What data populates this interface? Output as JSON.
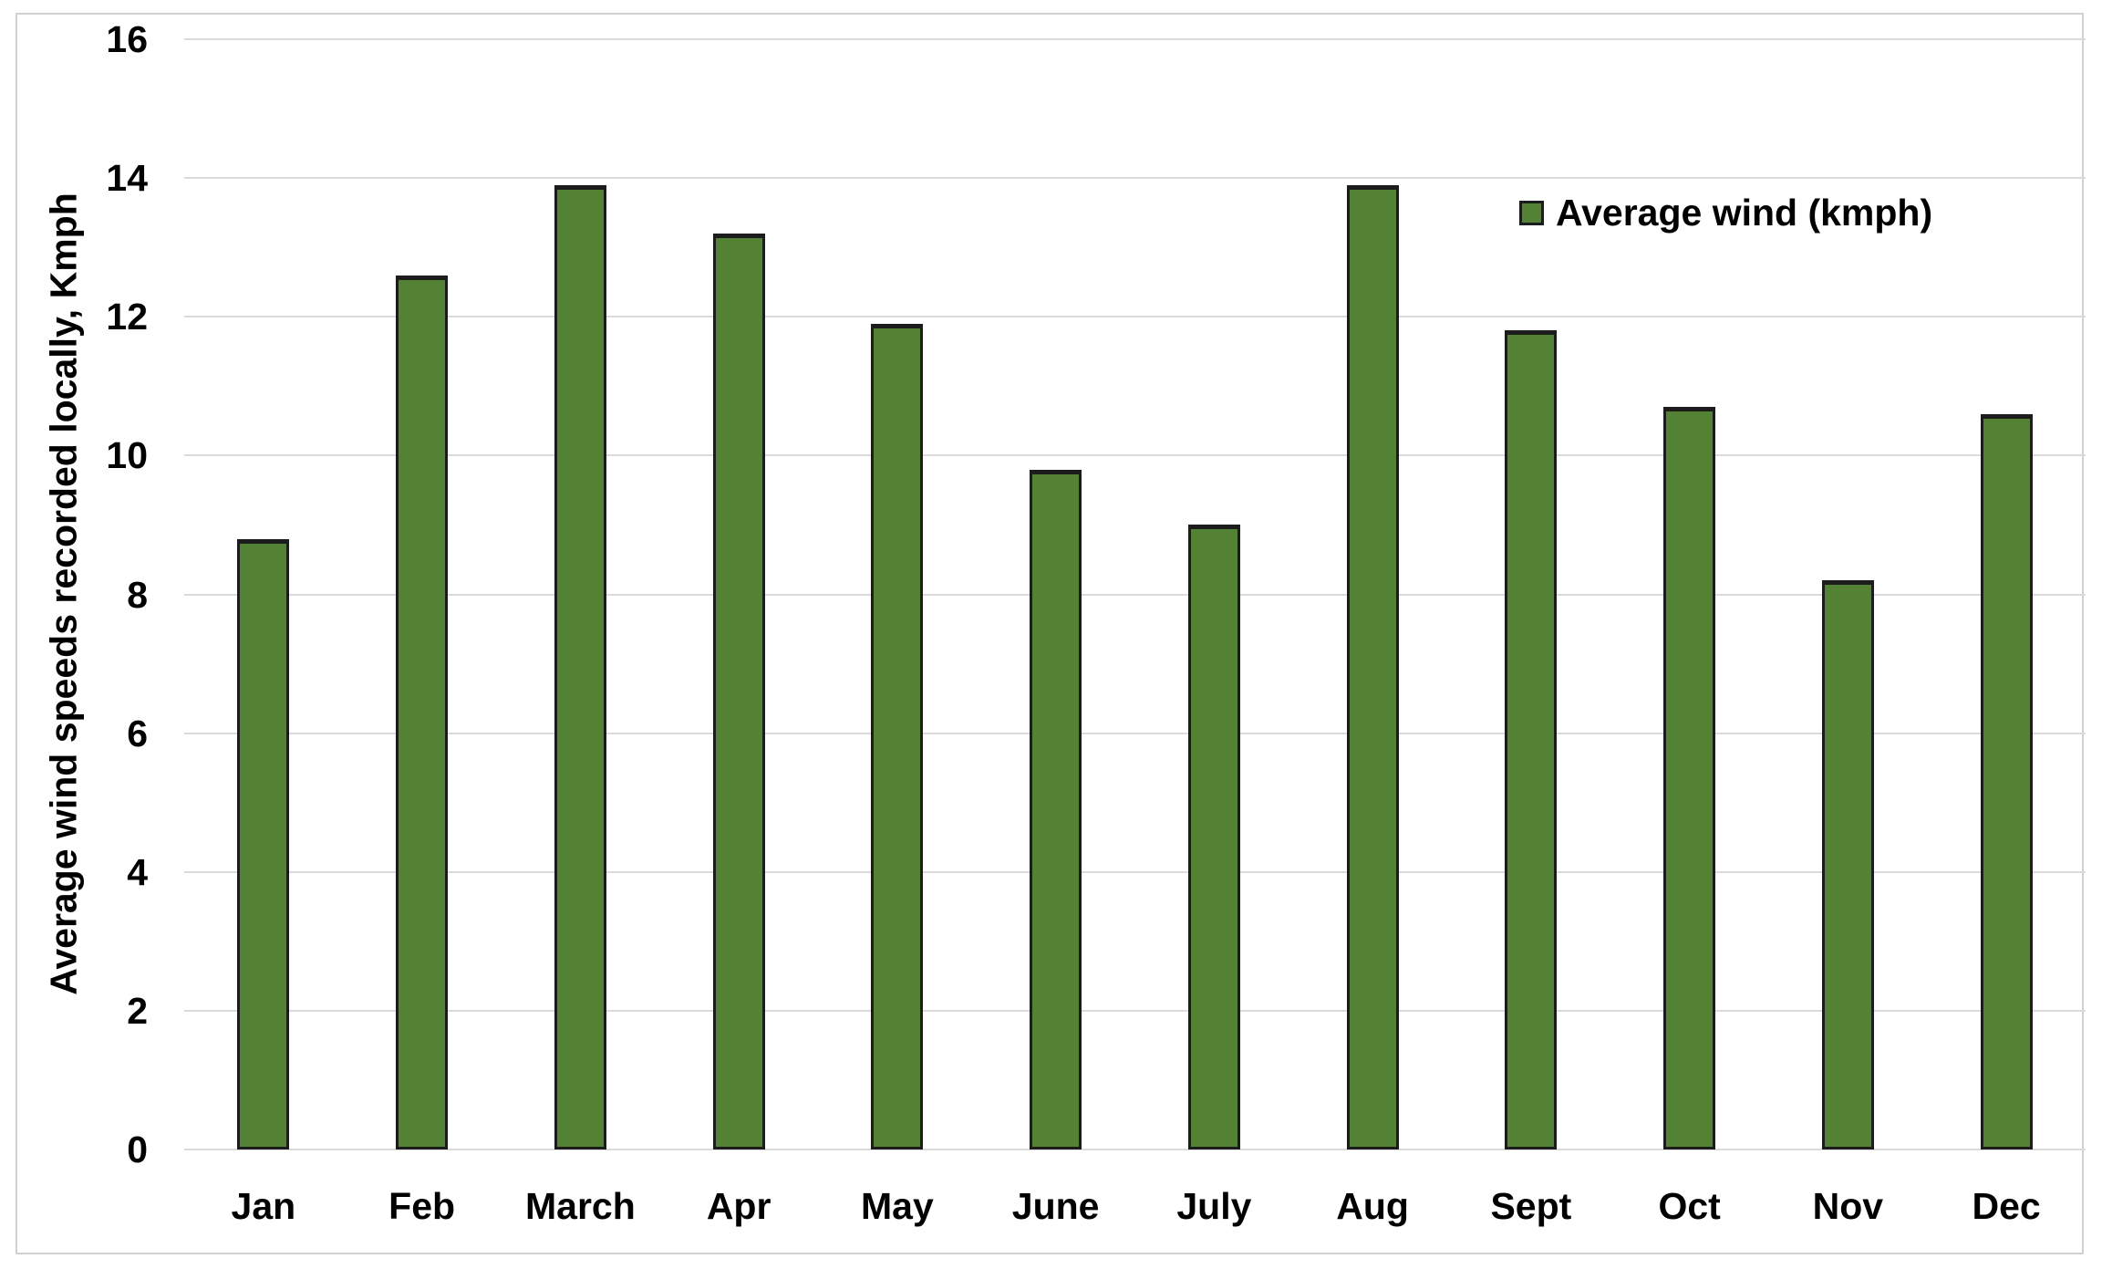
{
  "chart_data": {
    "type": "bar",
    "title": "",
    "categories": [
      "Jan",
      "Feb",
      "March",
      "Apr",
      "May",
      "June",
      "July",
      "Aug",
      "Sept",
      "Oct",
      "Nov",
      "Dec"
    ],
    "values": [
      8.8,
      12.6,
      13.9,
      13.2,
      11.9,
      9.8,
      9.0,
      13.9,
      11.8,
      10.7,
      8.2,
      10.6
    ],
    "series_name": "Average wind (kmph)",
    "xlabel": "",
    "ylabel": "Average wind speeds recorded locally, Kmph",
    "ylim": [
      0,
      16
    ],
    "yticks": [
      0,
      2,
      4,
      6,
      8,
      10,
      12,
      14,
      16
    ],
    "grid": "horizontal-only",
    "legend_position": "top-right-inside",
    "colors": {
      "bar_fill": "#548235",
      "bar_border": "#1c1c1c",
      "gridline": "#dadada",
      "frame_border": "#d2d0d0",
      "text": "#000000",
      "background": "#ffffff"
    }
  }
}
